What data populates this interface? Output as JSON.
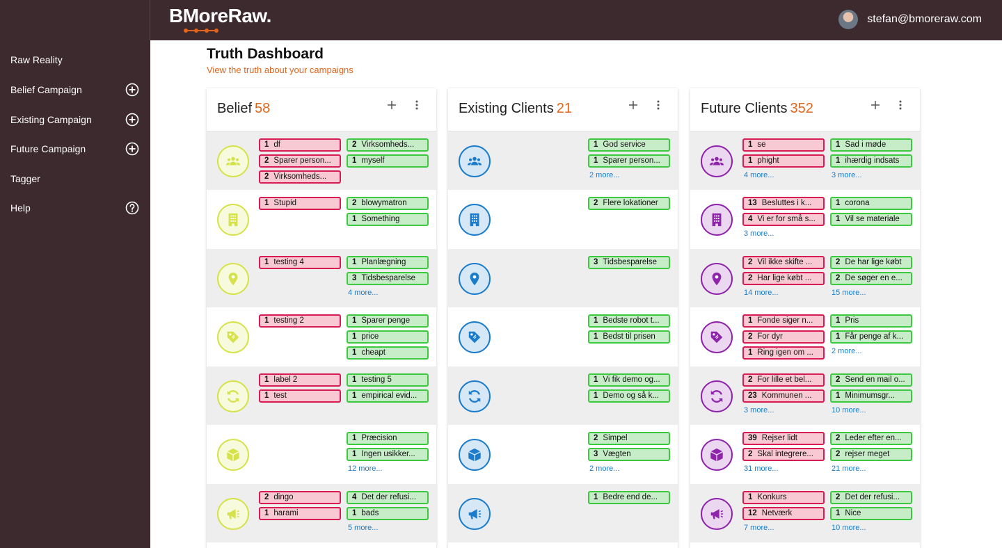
{
  "app": {
    "logo": "BMoreRaw.",
    "user_email": "stefan@bmoreraw.com"
  },
  "colors": {
    "sidebar": "#3d2a2f",
    "accent": "#e0651b",
    "negative": "#d81b53",
    "positive": "#3cc93f",
    "link": "#1a7ccb"
  },
  "sidebar": {
    "items": [
      {
        "label": "Raw Reality",
        "icon": ""
      },
      {
        "label": "Belief Campaign",
        "icon": "plus-circle-icon"
      },
      {
        "label": "Existing Campaign",
        "icon": "plus-circle-icon"
      },
      {
        "label": "Future Campaign",
        "icon": "plus-circle-icon"
      },
      {
        "label": "Tagger",
        "icon": ""
      },
      {
        "label": "Help",
        "icon": "help-circle-icon"
      }
    ]
  },
  "page": {
    "title": "Truth Dashboard",
    "subtitle": "View the truth about your campaigns"
  },
  "row_icons": [
    "people-icon",
    "building-icon",
    "location-pin-icon",
    "price-tag-icon",
    "refresh-icon",
    "box-icon",
    "megaphone-icon"
  ],
  "cards": [
    {
      "title": "Belief",
      "count": "58",
      "icon_color": "#d6e24a",
      "rows": [
        {
          "neg": [
            [
              "1",
              "df"
            ],
            [
              "2",
              "Sparer person..."
            ],
            [
              "2",
              "Virksomheds..."
            ]
          ],
          "pos": [
            [
              "2",
              "Virksomheds..."
            ],
            [
              "1",
              "myself"
            ]
          ],
          "neg_more": "",
          "pos_more": ""
        },
        {
          "neg": [
            [
              "1",
              "Stupid"
            ]
          ],
          "pos": [
            [
              "2",
              "blowymatron"
            ],
            [
              "1",
              "Something"
            ]
          ],
          "neg_more": "",
          "pos_more": ""
        },
        {
          "neg": [
            [
              "1",
              "testing 4"
            ]
          ],
          "pos": [
            [
              "1",
              "Planlægning"
            ],
            [
              "3",
              "Tidsbesparelse"
            ]
          ],
          "neg_more": "",
          "pos_more": "4 more..."
        },
        {
          "neg": [
            [
              "1",
              "testing 2"
            ]
          ],
          "pos": [
            [
              "1",
              "Sparer penge"
            ],
            [
              "1",
              "price"
            ],
            [
              "1",
              "cheapt"
            ]
          ],
          "neg_more": "",
          "pos_more": ""
        },
        {
          "neg": [
            [
              "1",
              "label 2"
            ],
            [
              "1",
              "test"
            ]
          ],
          "pos": [
            [
              "1",
              "testing 5"
            ],
            [
              "1",
              "empirical evid..."
            ]
          ],
          "neg_more": "",
          "pos_more": ""
        },
        {
          "neg": [],
          "pos": [
            [
              "1",
              "Præcision"
            ],
            [
              "1",
              "Ingen usikker..."
            ]
          ],
          "neg_more": "",
          "pos_more": "12 more..."
        },
        {
          "neg": [
            [
              "2",
              "dingo"
            ],
            [
              "1",
              "harami"
            ]
          ],
          "pos": [
            [
              "4",
              "Det der refusi..."
            ],
            [
              "1",
              "bads"
            ]
          ],
          "neg_more": "",
          "pos_more": "5 more..."
        }
      ]
    },
    {
      "title": "Existing Clients",
      "count": "21",
      "icon_color": "#1a7ccb",
      "rows": [
        {
          "neg": [],
          "pos": [
            [
              "1",
              "God service"
            ],
            [
              "1",
              "Sparer person..."
            ]
          ],
          "neg_more": "",
          "pos_more": "2 more..."
        },
        {
          "neg": [],
          "pos": [
            [
              "2",
              "Flere lokationer"
            ]
          ],
          "neg_more": "",
          "pos_more": ""
        },
        {
          "neg": [],
          "pos": [
            [
              "3",
              "Tidsbesparelse"
            ]
          ],
          "neg_more": "",
          "pos_more": ""
        },
        {
          "neg": [],
          "pos": [
            [
              "1",
              "Bedste robot t..."
            ],
            [
              "1",
              "Bedst til prisen"
            ]
          ],
          "neg_more": "",
          "pos_more": ""
        },
        {
          "neg": [],
          "pos": [
            [
              "1",
              "Vi fik demo og..."
            ],
            [
              "1",
              "Demo og så k..."
            ]
          ],
          "neg_more": "",
          "pos_more": ""
        },
        {
          "neg": [],
          "pos": [
            [
              "2",
              "Simpel"
            ],
            [
              "3",
              "Vægten"
            ]
          ],
          "neg_more": "",
          "pos_more": "2 more..."
        },
        {
          "neg": [],
          "pos": [
            [
              "1",
              "Bedre end de..."
            ]
          ],
          "neg_more": "",
          "pos_more": ""
        }
      ]
    },
    {
      "title": "Future Clients",
      "count": "352",
      "icon_color": "#8e24aa",
      "rows": [
        {
          "neg": [
            [
              "1",
              "se"
            ],
            [
              "1",
              "phight"
            ]
          ],
          "pos": [
            [
              "1",
              "Sad i møde"
            ],
            [
              "1",
              "ihærdig indsats"
            ]
          ],
          "neg_more": "4 more...",
          "pos_more": "3 more..."
        },
        {
          "neg": [
            [
              "13",
              "Besluttes i k..."
            ],
            [
              "4",
              "Vi er for små s..."
            ]
          ],
          "pos": [
            [
              "1",
              "corona"
            ],
            [
              "1",
              "Vil se materiale"
            ]
          ],
          "neg_more": "3 more...",
          "pos_more": ""
        },
        {
          "neg": [
            [
              "2",
              "Vil ikke skifte ..."
            ],
            [
              "2",
              "Har lige købt ..."
            ]
          ],
          "pos": [
            [
              "2",
              "De har lige købt"
            ],
            [
              "2",
              "De søger en e..."
            ]
          ],
          "neg_more": "14 more...",
          "pos_more": "15 more..."
        },
        {
          "neg": [
            [
              "1",
              "Fonde siger n..."
            ],
            [
              "2",
              "For dyr"
            ],
            [
              "1",
              "Ring igen om ..."
            ]
          ],
          "pos": [
            [
              "1",
              "Pris"
            ],
            [
              "1",
              "Får penge af k..."
            ]
          ],
          "neg_more": "",
          "pos_more": "2 more..."
        },
        {
          "neg": [
            [
              "2",
              "For lille et bel..."
            ],
            [
              "23",
              "Kommunen ..."
            ]
          ],
          "pos": [
            [
              "2",
              "Send en mail o..."
            ],
            [
              "1",
              "Minimumsgr..."
            ]
          ],
          "neg_more": "3 more...",
          "pos_more": "10 more..."
        },
        {
          "neg": [
            [
              "39",
              "Rejser lidt"
            ],
            [
              "2",
              "Skal integrere..."
            ]
          ],
          "pos": [
            [
              "2",
              "Leder efter en..."
            ],
            [
              "2",
              "rejser meget"
            ]
          ],
          "neg_more": "31 more...",
          "pos_more": "21 more..."
        },
        {
          "neg": [
            [
              "1",
              "Konkurs"
            ],
            [
              "12",
              "Netværk"
            ]
          ],
          "pos": [
            [
              "2",
              "Det der refusi..."
            ],
            [
              "1",
              "Nice"
            ]
          ],
          "neg_more": "7 more...",
          "pos_more": "10 more..."
        }
      ]
    }
  ]
}
